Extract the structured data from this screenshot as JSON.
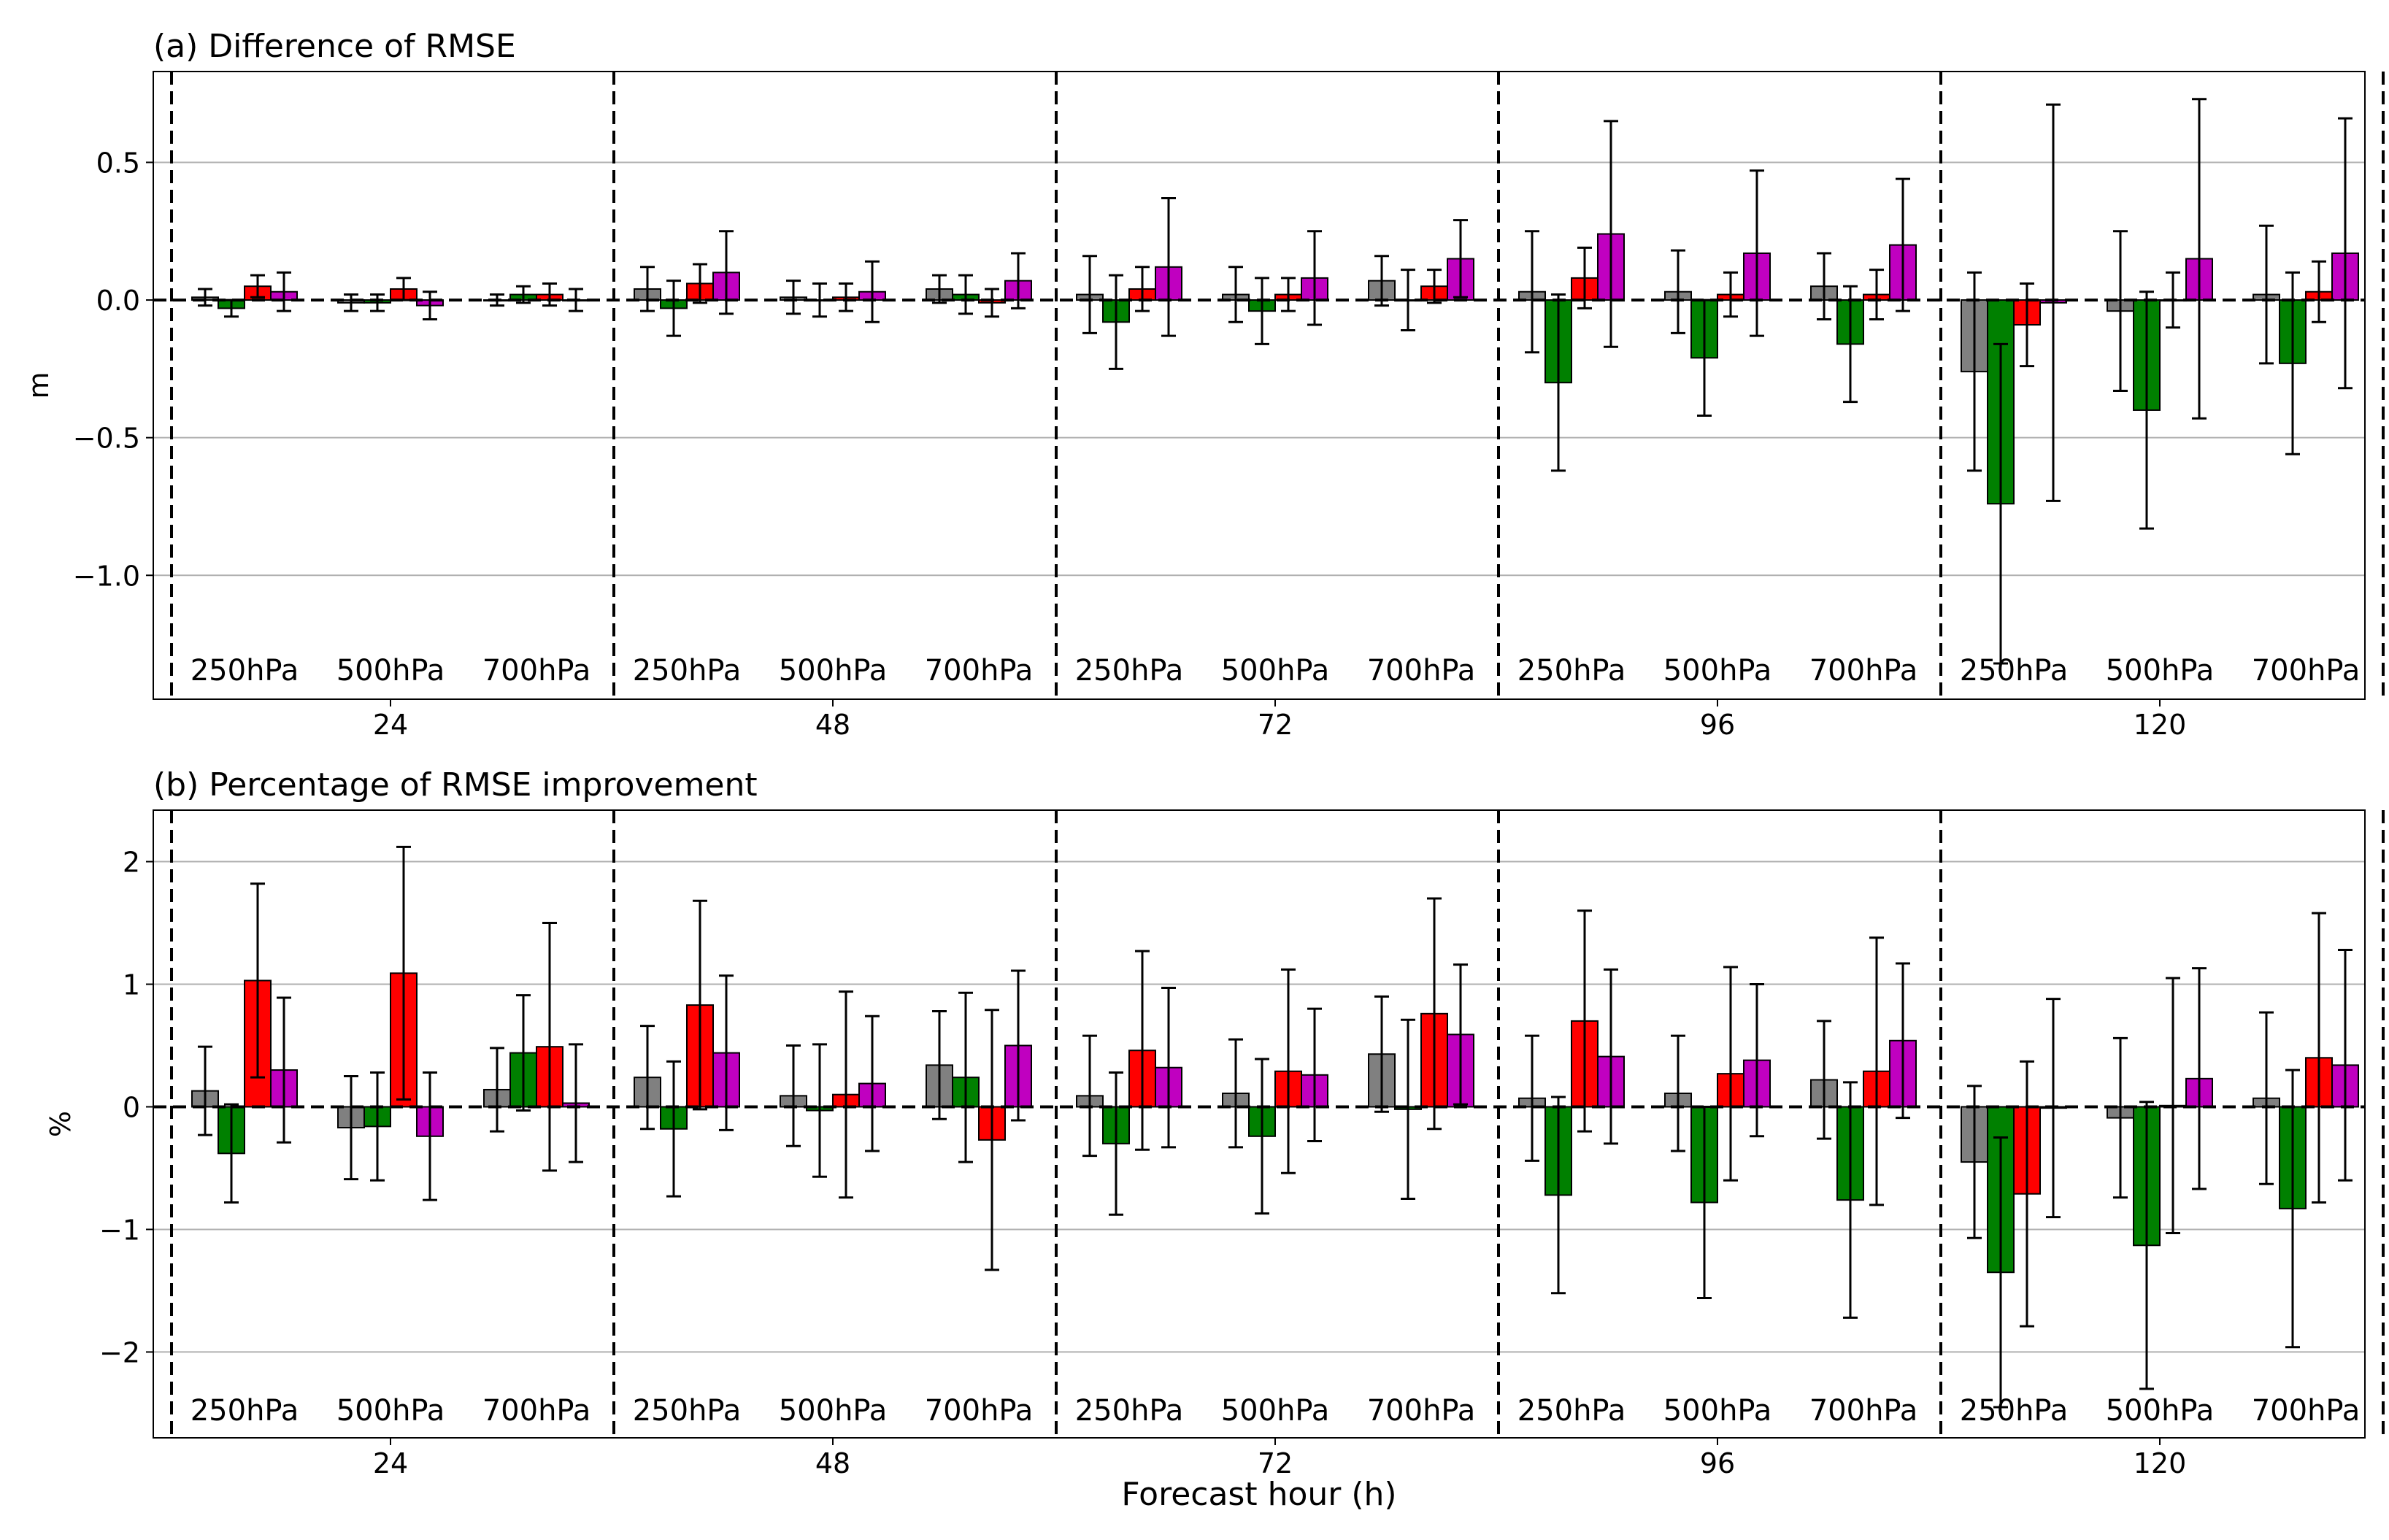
{
  "figure": {
    "xlabel": "Forecast hour (h)"
  },
  "chart_data": [
    {
      "type": "bar",
      "title": "(a) Difference of RMSE",
      "ylabel": "m",
      "ylim": [
        -1.45,
        0.83
      ],
      "yticks": [
        0.5,
        0.0,
        -0.5,
        -1.0
      ],
      "ytick_labels": [
        "0.5",
        "0.0",
        "−0.5",
        "−1.0"
      ],
      "grid": true,
      "forecast_hours": [
        "24",
        "48",
        "72",
        "96",
        "120"
      ],
      "levels": [
        "250hPa",
        "500hPa",
        "700hPa"
      ],
      "series_colors": [
        "#808080",
        "#008000",
        "#ff0000",
        "#c000c0"
      ],
      "values": [
        [
          [
            0.01,
            -0.03,
            0.05,
            0.03
          ],
          [
            -0.01,
            -0.01,
            0.04,
            -0.02
          ],
          [
            0.0,
            0.02,
            0.02,
            0.0
          ]
        ],
        [
          [
            0.04,
            -0.03,
            0.06,
            0.1
          ],
          [
            0.01,
            0.0,
            0.01,
            0.03
          ],
          [
            0.04,
            0.02,
            -0.01,
            0.07
          ]
        ],
        [
          [
            0.02,
            -0.08,
            0.04,
            0.12
          ],
          [
            0.02,
            -0.04,
            0.02,
            0.08
          ],
          [
            0.07,
            0.0,
            0.05,
            0.15
          ]
        ],
        [
          [
            0.03,
            -0.3,
            0.08,
            0.24
          ],
          [
            0.03,
            -0.21,
            0.02,
            0.17
          ],
          [
            0.05,
            -0.16,
            0.02,
            0.2
          ]
        ],
        [
          [
            -0.26,
            -0.74,
            -0.09,
            -0.01
          ],
          [
            -0.04,
            -0.4,
            0.0,
            0.15
          ],
          [
            0.02,
            -0.23,
            0.03,
            0.17
          ]
        ]
      ],
      "errors": [
        [
          [
            0.03,
            0.03,
            0.04,
            0.07
          ],
          [
            0.03,
            0.03,
            0.04,
            0.05
          ],
          [
            0.02,
            0.03,
            0.04,
            0.04
          ]
        ],
        [
          [
            0.08,
            0.1,
            0.07,
            0.15
          ],
          [
            0.06,
            0.06,
            0.05,
            0.11
          ],
          [
            0.05,
            0.07,
            0.05,
            0.1
          ]
        ],
        [
          [
            0.14,
            0.17,
            0.08,
            0.25
          ],
          [
            0.1,
            0.12,
            0.06,
            0.17
          ],
          [
            0.09,
            0.11,
            0.06,
            0.14
          ]
        ],
        [
          [
            0.22,
            0.32,
            0.11,
            0.41
          ],
          [
            0.15,
            0.21,
            0.08,
            0.3
          ],
          [
            0.12,
            0.21,
            0.09,
            0.24
          ]
        ],
        [
          [
            0.36,
            0.58,
            0.15,
            0.72
          ],
          [
            0.29,
            0.43,
            0.1,
            0.58
          ],
          [
            0.25,
            0.33,
            0.11,
            0.49
          ]
        ]
      ]
    },
    {
      "type": "bar",
      "title": "(b) Percentage of RMSE improvement",
      "ylabel": "%",
      "ylim": [
        -2.7,
        2.42
      ],
      "yticks": [
        2,
        1,
        0,
        -1,
        -2
      ],
      "ytick_labels": [
        "2",
        "1",
        "0",
        "−1",
        "−2"
      ],
      "grid": true,
      "forecast_hours": [
        "24",
        "48",
        "72",
        "96",
        "120"
      ],
      "levels": [
        "250hPa",
        "500hPa",
        "700hPa"
      ],
      "series_colors": [
        "#808080",
        "#008000",
        "#ff0000",
        "#c000c0"
      ],
      "values": [
        [
          [
            0.13,
            -0.38,
            1.03,
            0.3
          ],
          [
            -0.17,
            -0.16,
            1.09,
            -0.24
          ],
          [
            0.14,
            0.44,
            0.49,
            0.03
          ]
        ],
        [
          [
            0.24,
            -0.18,
            0.83,
            0.44
          ],
          [
            0.09,
            -0.03,
            0.1,
            0.19
          ],
          [
            0.34,
            0.24,
            -0.27,
            0.5
          ]
        ],
        [
          [
            0.09,
            -0.3,
            0.46,
            0.32
          ],
          [
            0.11,
            -0.24,
            0.29,
            0.26
          ],
          [
            0.43,
            -0.02,
            0.76,
            0.59
          ]
        ],
        [
          [
            0.07,
            -0.72,
            0.7,
            0.41
          ],
          [
            0.11,
            -0.78,
            0.27,
            0.38
          ],
          [
            0.22,
            -0.76,
            0.29,
            0.54
          ]
        ],
        [
          [
            -0.45,
            -1.35,
            -0.71,
            -0.01
          ],
          [
            -0.09,
            -1.13,
            0.01,
            0.23
          ],
          [
            0.07,
            -0.83,
            0.4,
            0.34
          ]
        ]
      ],
      "errors": [
        [
          [
            0.36,
            0.4,
            0.79,
            0.59
          ],
          [
            0.42,
            0.44,
            1.03,
            0.52
          ],
          [
            0.34,
            0.47,
            1.01,
            0.48
          ]
        ],
        [
          [
            0.42,
            0.55,
            0.85,
            0.63
          ],
          [
            0.41,
            0.54,
            0.84,
            0.55
          ],
          [
            0.44,
            0.69,
            1.06,
            0.61
          ]
        ],
        [
          [
            0.49,
            0.58,
            0.81,
            0.65
          ],
          [
            0.44,
            0.63,
            0.83,
            0.54
          ],
          [
            0.47,
            0.73,
            0.94,
            0.57
          ]
        ],
        [
          [
            0.51,
            0.8,
            0.9,
            0.71
          ],
          [
            0.47,
            0.78,
            0.87,
            0.62
          ],
          [
            0.48,
            0.96,
            1.09,
            0.63
          ]
        ],
        [
          [
            0.62,
            1.1,
            1.08,
            0.89
          ],
          [
            0.65,
            1.17,
            1.04,
            0.9
          ],
          [
            0.7,
            1.13,
            1.18,
            0.94
          ]
        ]
      ]
    }
  ]
}
